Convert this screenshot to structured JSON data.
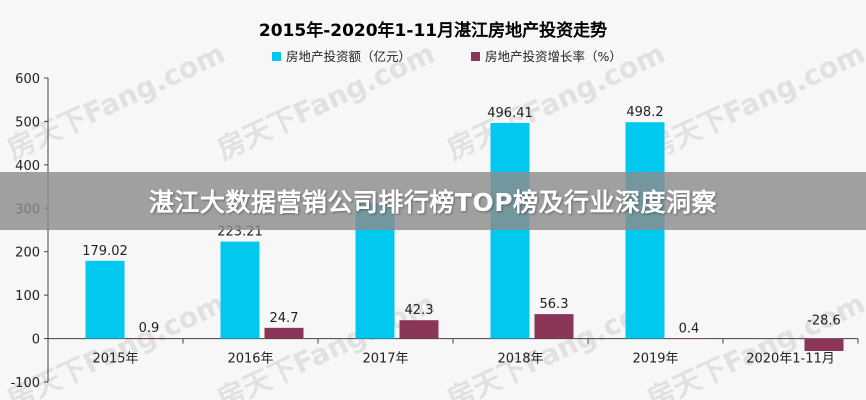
{
  "banner": {
    "text": "湛江大数据营销公司排行榜TOP榜及行业深度洞察"
  },
  "watermark": "房天下Fang.com",
  "chart_data": {
    "type": "bar",
    "title": "2015年-2020年1-11月湛江房地产投资走势",
    "categories": [
      "2015年",
      "2016年",
      "2017年",
      "2018年",
      "2019年",
      "2020年1-11月"
    ],
    "series": [
      {
        "name": "房地产投资额（亿元）",
        "color": "#00c8ef",
        "values": [
          179.02,
          223.21,
          312,
          496.41,
          498.2,
          null
        ],
        "labels": [
          "179.02",
          "223.21",
          "",
          "496.41",
          "498.2",
          ""
        ]
      },
      {
        "name": "房地产投资增长率（%）",
        "color": "#8b3558",
        "values": [
          0.9,
          24.7,
          42.3,
          56.3,
          0.4,
          -28.6
        ],
        "labels": [
          "0.9",
          "24.7",
          "42.3",
          "56.3",
          "0.4",
          "-28.6"
        ]
      }
    ],
    "yticks": [
      "-100",
      "0",
      "100",
      "200",
      "300",
      "400",
      "500",
      "600"
    ],
    "ylim": [
      -100,
      600
    ],
    "xlabel": "",
    "ylabel": "",
    "legend_position": "top-center",
    "grid": false
  }
}
